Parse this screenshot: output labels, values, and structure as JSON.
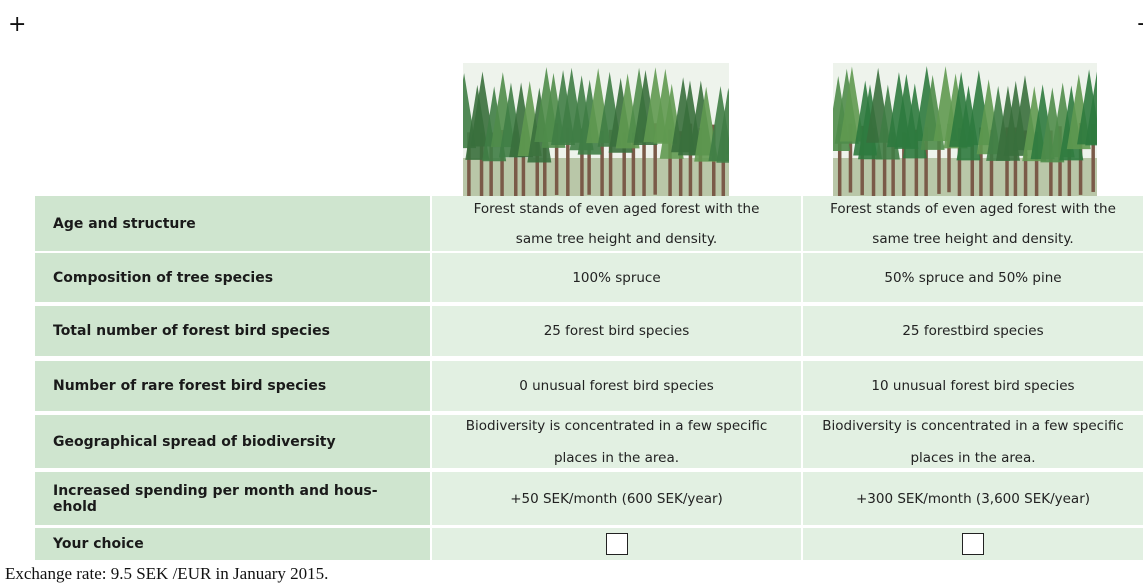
{
  "table": {
    "rows": [
      {
        "label": "Age and structure",
        "values": [
          "Forest stands of even aged forest with the same tree height and density.",
          "Forest stands of even aged forest with the same tree height and density."
        ]
      },
      {
        "label": "Composition of tree species",
        "values": [
          "100% spruce",
          "50% spruce and 50% pine"
        ]
      },
      {
        "label": "Total number of forest bird species",
        "values": [
          "25 forest bird species",
          "25 forestbird species"
        ]
      },
      {
        "label": "Number of rare forest bird species",
        "values": [
          "0 unusual forest bird species",
          "10 unusual forest bird species"
        ]
      },
      {
        "label": "Geographical spread of biodiversity",
        "values": [
          "Biodiversity is concentrated in a few specific places in the area.",
          "Biodiversity is concentrated in a few specific places in the area."
        ]
      },
      {
        "label": "Increased spending per month and hous-ehold",
        "values": [
          "+50 SEK/month (600 SEK/year)",
          "+300 SEK/month (3,600 SEK/year)"
        ]
      },
      {
        "label": "Your choice"
      }
    ]
  },
  "footnote": "Exchange rate: 9.5 SEK /EUR in January 2015."
}
